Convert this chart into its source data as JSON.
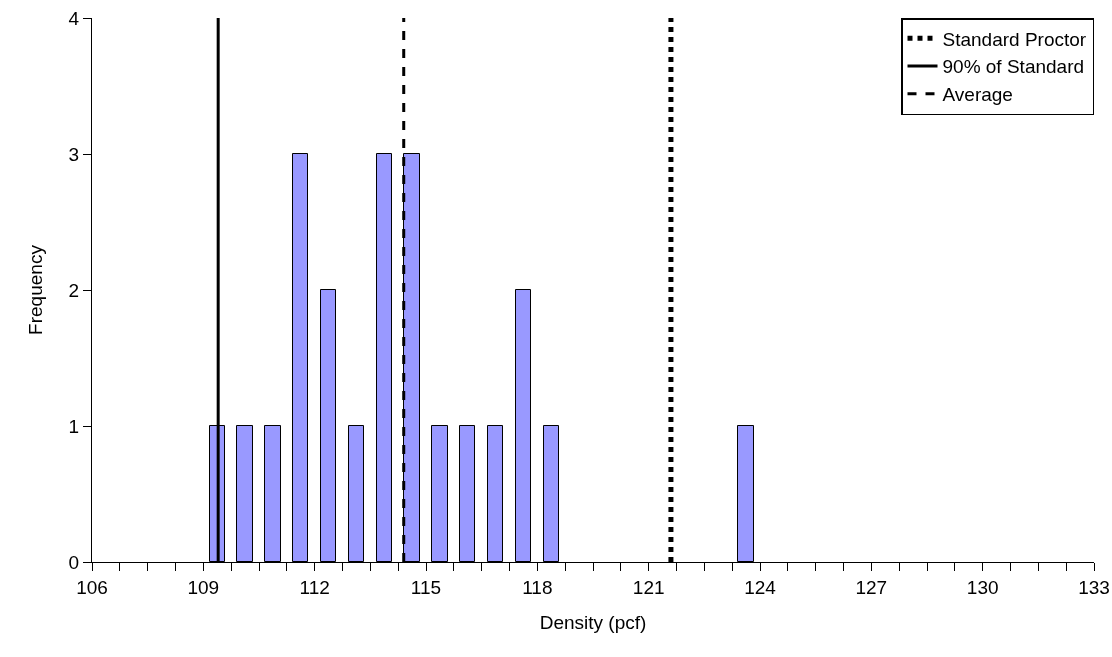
{
  "chart_data": {
    "type": "histogram",
    "xlabel": "Density (pcf)",
    "ylabel": "Frequency",
    "bins": [
      106,
      106.75,
      107.5,
      108.25,
      109,
      109.75,
      110.5,
      111.25,
      112,
      112.75,
      113.5,
      114.25,
      115,
      115.75,
      116.5,
      117.25,
      118,
      118.75,
      119.5,
      120.25,
      121,
      121.75,
      122.5,
      123.25,
      124,
      124.75,
      125.5,
      126.25,
      127,
      127.75,
      128.5,
      129.25,
      130,
      130.75,
      131.5,
      132.25,
      133
    ],
    "values": [
      0,
      0,
      0,
      0,
      1,
      1,
      1,
      3,
      2,
      1,
      3,
      3,
      1,
      1,
      1,
      2,
      1,
      0,
      0,
      0,
      0,
      0,
      0,
      1,
      0,
      0,
      0,
      0,
      0,
      0,
      0,
      0,
      0,
      0,
      0,
      0
    ],
    "color": "#9999ff",
    "xlim": [
      106,
      133
    ],
    "xticks": [
      106,
      {
        "value": 106.75,
        "label": null
      },
      {
        "value": 107.5,
        "label": null
      },
      {
        "value": 108.25,
        "label": null
      },
      109,
      {
        "value": 109.75,
        "label": null
      },
      {
        "value": 110.5,
        "label": null
      },
      {
        "value": 111.25,
        "label": null
      },
      112,
      {
        "value": 112.75,
        "label": null
      },
      {
        "value": 113.5,
        "label": null
      },
      {
        "value": 114.25,
        "label": null
      },
      115,
      {
        "value": 115.75,
        "label": null
      },
      {
        "value": 116.5,
        "label": null
      },
      {
        "value": 117.25,
        "label": null
      },
      118,
      {
        "value": 118.75,
        "label": null
      },
      {
        "value": 119.5,
        "label": null
      },
      {
        "value": 120.25,
        "label": null
      },
      121,
      {
        "value": 121.75,
        "label": null
      },
      {
        "value": 122.5,
        "label": null
      },
      {
        "value": 123.25,
        "label": null
      },
      124,
      {
        "value": 124.75,
        "label": null
      },
      {
        "value": 125.5,
        "label": null
      },
      {
        "value": 126.25,
        "label": null
      },
      127,
      {
        "value": 127.75,
        "label": null
      },
      {
        "value": 128.5,
        "label": null
      },
      {
        "value": 129.25,
        "label": null
      },
      130,
      {
        "value": 130.75,
        "label": null
      },
      {
        "value": 131.5,
        "label": null
      },
      {
        "value": 132.25,
        "label": null
      },
      133
    ],
    "ylim": [
      0,
      4
    ],
    "yticks": [
      0,
      1,
      2,
      3,
      4
    ],
    "grid": false,
    "legend": "top right",
    "series": [
      {
        "name": "Standard Proctor",
        "type": "line",
        "color": "#000000",
        "line_style": "dotted",
        "x": [
          121.6,
          121.6
        ],
        "values": [
          0,
          4
        ]
      },
      {
        "name": "90% of Standard",
        "type": "line",
        "color": "#000000",
        "line_style": "solid",
        "x": [
          109.4,
          109.4
        ],
        "values": [
          0,
          4
        ]
      },
      {
        "name": "Average",
        "type": "line",
        "color": "#000000",
        "line_style": "dashed",
        "x": [
          114.4,
          114.4
        ],
        "values": [
          0,
          4
        ]
      }
    ]
  }
}
